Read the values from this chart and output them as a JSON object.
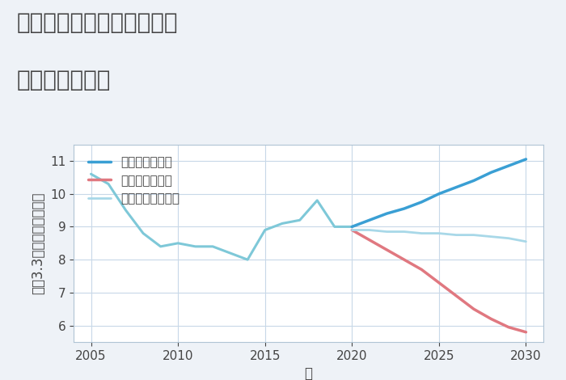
{
  "title_line1": "岐阜県郡上市大和町万場の",
  "title_line2": "土地の価格推移",
  "xlabel": "年",
  "ylabel": "坪（3.3㎡）単価（万円）",
  "bg_color": "#eef2f7",
  "plot_bg_color": "#ffffff",
  "historical": {
    "years": [
      2005,
      2006,
      2007,
      2008,
      2009,
      2010,
      2011,
      2012,
      2013,
      2014,
      2015,
      2016,
      2017,
      2018,
      2019,
      2020
    ],
    "values": [
      10.6,
      10.3,
      9.5,
      8.8,
      8.4,
      8.5,
      8.4,
      8.4,
      8.2,
      8.0,
      8.9,
      9.1,
      9.2,
      9.8,
      9.0,
      9.0
    ],
    "color": "#7ec8d8",
    "linewidth": 2.2
  },
  "good": {
    "years": [
      2020,
      2021,
      2022,
      2023,
      2024,
      2025,
      2026,
      2027,
      2028,
      2029,
      2030
    ],
    "values": [
      9.0,
      9.2,
      9.4,
      9.55,
      9.75,
      10.0,
      10.2,
      10.4,
      10.65,
      10.85,
      11.05
    ],
    "color": "#3a9fd4",
    "linewidth": 2.5,
    "label": "グッドシナリオ"
  },
  "bad": {
    "years": [
      2020,
      2021,
      2022,
      2023,
      2024,
      2025,
      2026,
      2027,
      2028,
      2029,
      2030
    ],
    "values": [
      8.9,
      8.6,
      8.3,
      8.0,
      7.7,
      7.3,
      6.9,
      6.5,
      6.2,
      5.95,
      5.8
    ],
    "color": "#e07880",
    "linewidth": 2.5,
    "label": "バッドシナリオ"
  },
  "normal": {
    "years": [
      2020,
      2021,
      2022,
      2023,
      2024,
      2025,
      2026,
      2027,
      2028,
      2029,
      2030
    ],
    "values": [
      8.9,
      8.9,
      8.85,
      8.85,
      8.8,
      8.8,
      8.75,
      8.75,
      8.7,
      8.65,
      8.55
    ],
    "color": "#a8d8e8",
    "linewidth": 2.0,
    "label": "ノーマルシナリオ"
  },
  "xlim": [
    2004.0,
    2031.0
  ],
  "ylim": [
    5.5,
    11.5
  ],
  "xticks": [
    2005,
    2010,
    2015,
    2020,
    2025,
    2030
  ],
  "yticks": [
    6,
    7,
    8,
    9,
    10,
    11
  ],
  "title_fontsize": 20,
  "axis_label_fontsize": 12,
  "tick_fontsize": 11,
  "legend_fontsize": 11,
  "grid_color": "#c8d8e8",
  "spine_color": "#b0c4d4",
  "text_color": "#444444"
}
